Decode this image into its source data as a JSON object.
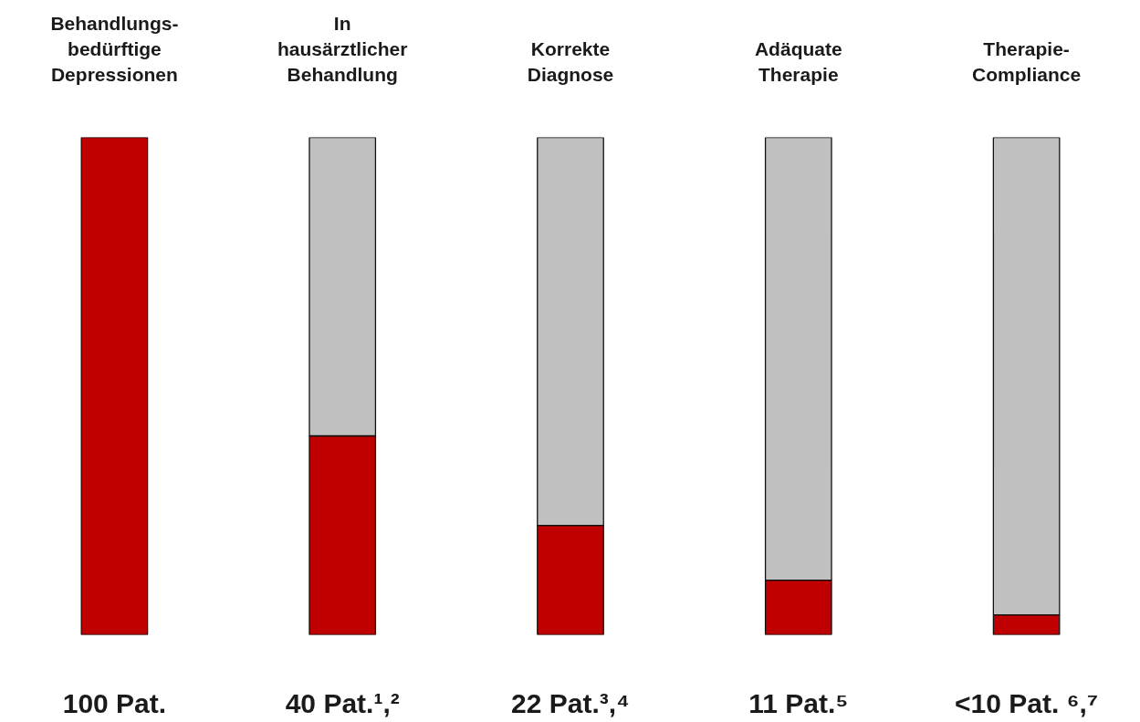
{
  "chart_data": {
    "type": "bar",
    "stacked": true,
    "categories": [
      "Behandlungs-\nbedürftige\nDepressionen",
      "In\nhausärztlicher\nBehandlung",
      "Korrekte\nDiagnose",
      "Adäquate\nTherapie",
      "Therapie-\nCompliance"
    ],
    "series": [
      {
        "color": "#c00000",
        "values": [
          100,
          40,
          22,
          11,
          4
        ],
        "value_labels": [
          "100 Pat.",
          "40 Pat.¹,²",
          "22 Pat.³,⁴",
          "11 Pat.⁵",
          "<10 Pat. ⁶,⁷"
        ]
      },
      {
        "color": "#c0c0c0",
        "values": [
          null,
          60,
          78,
          89,
          96
        ]
      }
    ],
    "ylim": [
      0,
      100
    ],
    "tick_labels": "x"
  }
}
